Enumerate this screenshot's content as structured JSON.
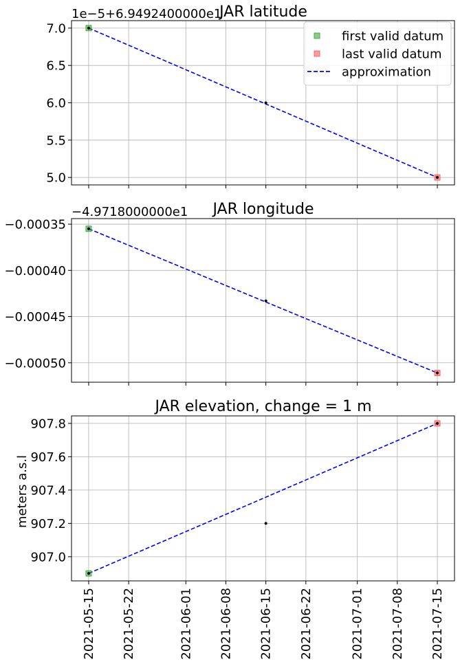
{
  "colors": {
    "first": "#2ca02c",
    "last": "#ff4d4d",
    "approx": "#0000ff",
    "points": "#000000",
    "grid": "#b0b0b0"
  },
  "chart_data": [
    {
      "type": "line",
      "title": "JAR latitude",
      "offset_text": "1e−5+6.9492400000e1",
      "xlabel": "",
      "ylabel": "",
      "ylim": [
        4.9,
        7.1
      ],
      "yticks": [
        {
          "value": 5.0,
          "label": "5.0"
        },
        {
          "value": 5.5,
          "label": "5.5"
        },
        {
          "value": 6.0,
          "label": "6.0"
        },
        {
          "value": 6.5,
          "label": "6.5"
        },
        {
          "value": 7.0,
          "label": "7.0"
        }
      ],
      "data_points": {
        "x": [
          "2021-05-15",
          "2021-06-15",
          "2021-07-15"
        ],
        "y": [
          7.0,
          6.0,
          5.0
        ]
      },
      "first_valid_datum": {
        "x": "2021-05-15",
        "y": 7.0
      },
      "last_valid_datum": {
        "x": "2021-07-15",
        "y": 5.0
      },
      "approximation": {
        "x": [
          "2021-05-15",
          "2021-07-15"
        ],
        "y": [
          7.0,
          5.0
        ]
      },
      "grid": true,
      "legend": {
        "placement": "top-right",
        "entries": [
          "first valid datum",
          "last valid datum",
          "approximation"
        ]
      }
    },
    {
      "type": "line",
      "title": "JAR longitude",
      "offset_text": "−4.9718000000e1",
      "xlabel": "",
      "ylabel": "",
      "ylim": [
        -0.000521,
        -0.000344
      ],
      "yticks": [
        {
          "value": -0.00035,
          "label": "−0.00035"
        },
        {
          "value": -0.0004,
          "label": "−0.00040"
        },
        {
          "value": -0.00045,
          "label": "−0.00045"
        },
        {
          "value": -0.0005,
          "label": "−0.00050"
        }
      ],
      "data_points": {
        "x": [
          "2021-05-15",
          "2021-06-15",
          "2021-07-15"
        ],
        "y": [
          -0.000355,
          -0.000433,
          -0.000511
        ]
      },
      "first_valid_datum": {
        "x": "2021-05-15",
        "y": -0.000355
      },
      "last_valid_datum": {
        "x": "2021-07-15",
        "y": -0.000511
      },
      "approximation": {
        "x": [
          "2021-05-15",
          "2021-07-15"
        ],
        "y": [
          -0.000355,
          -0.000511
        ]
      },
      "grid": true
    },
    {
      "type": "line",
      "title": "JAR elevation, change = 1 m",
      "offset_text": "",
      "xlabel": "",
      "ylabel": "meters a.s.l",
      "ylim": [
        906.855,
        907.845
      ],
      "yticks": [
        {
          "value": 907.0,
          "label": "907.0"
        },
        {
          "value": 907.2,
          "label": "907.2"
        },
        {
          "value": 907.4,
          "label": "907.4"
        },
        {
          "value": 907.6,
          "label": "907.6"
        },
        {
          "value": 907.8,
          "label": "907.8"
        }
      ],
      "data_points": {
        "x": [
          "2021-05-15",
          "2021-06-15",
          "2021-07-15"
        ],
        "y": [
          906.9,
          907.2,
          907.8
        ]
      },
      "first_valid_datum": {
        "x": "2021-05-15",
        "y": 906.9
      },
      "last_valid_datum": {
        "x": "2021-07-15",
        "y": 907.8
      },
      "approximation": {
        "x": [
          "2021-05-15",
          "2021-07-15"
        ],
        "y": [
          906.9,
          907.8
        ]
      },
      "grid": true
    }
  ],
  "x_axis": {
    "range": [
      "2021-05-12",
      "2021-07-18"
    ],
    "ticks": [
      "2021-05-15",
      "2021-05-22",
      "2021-06-01",
      "2021-06-08",
      "2021-06-15",
      "2021-06-22",
      "2021-07-01",
      "2021-07-08",
      "2021-07-15"
    ]
  }
}
